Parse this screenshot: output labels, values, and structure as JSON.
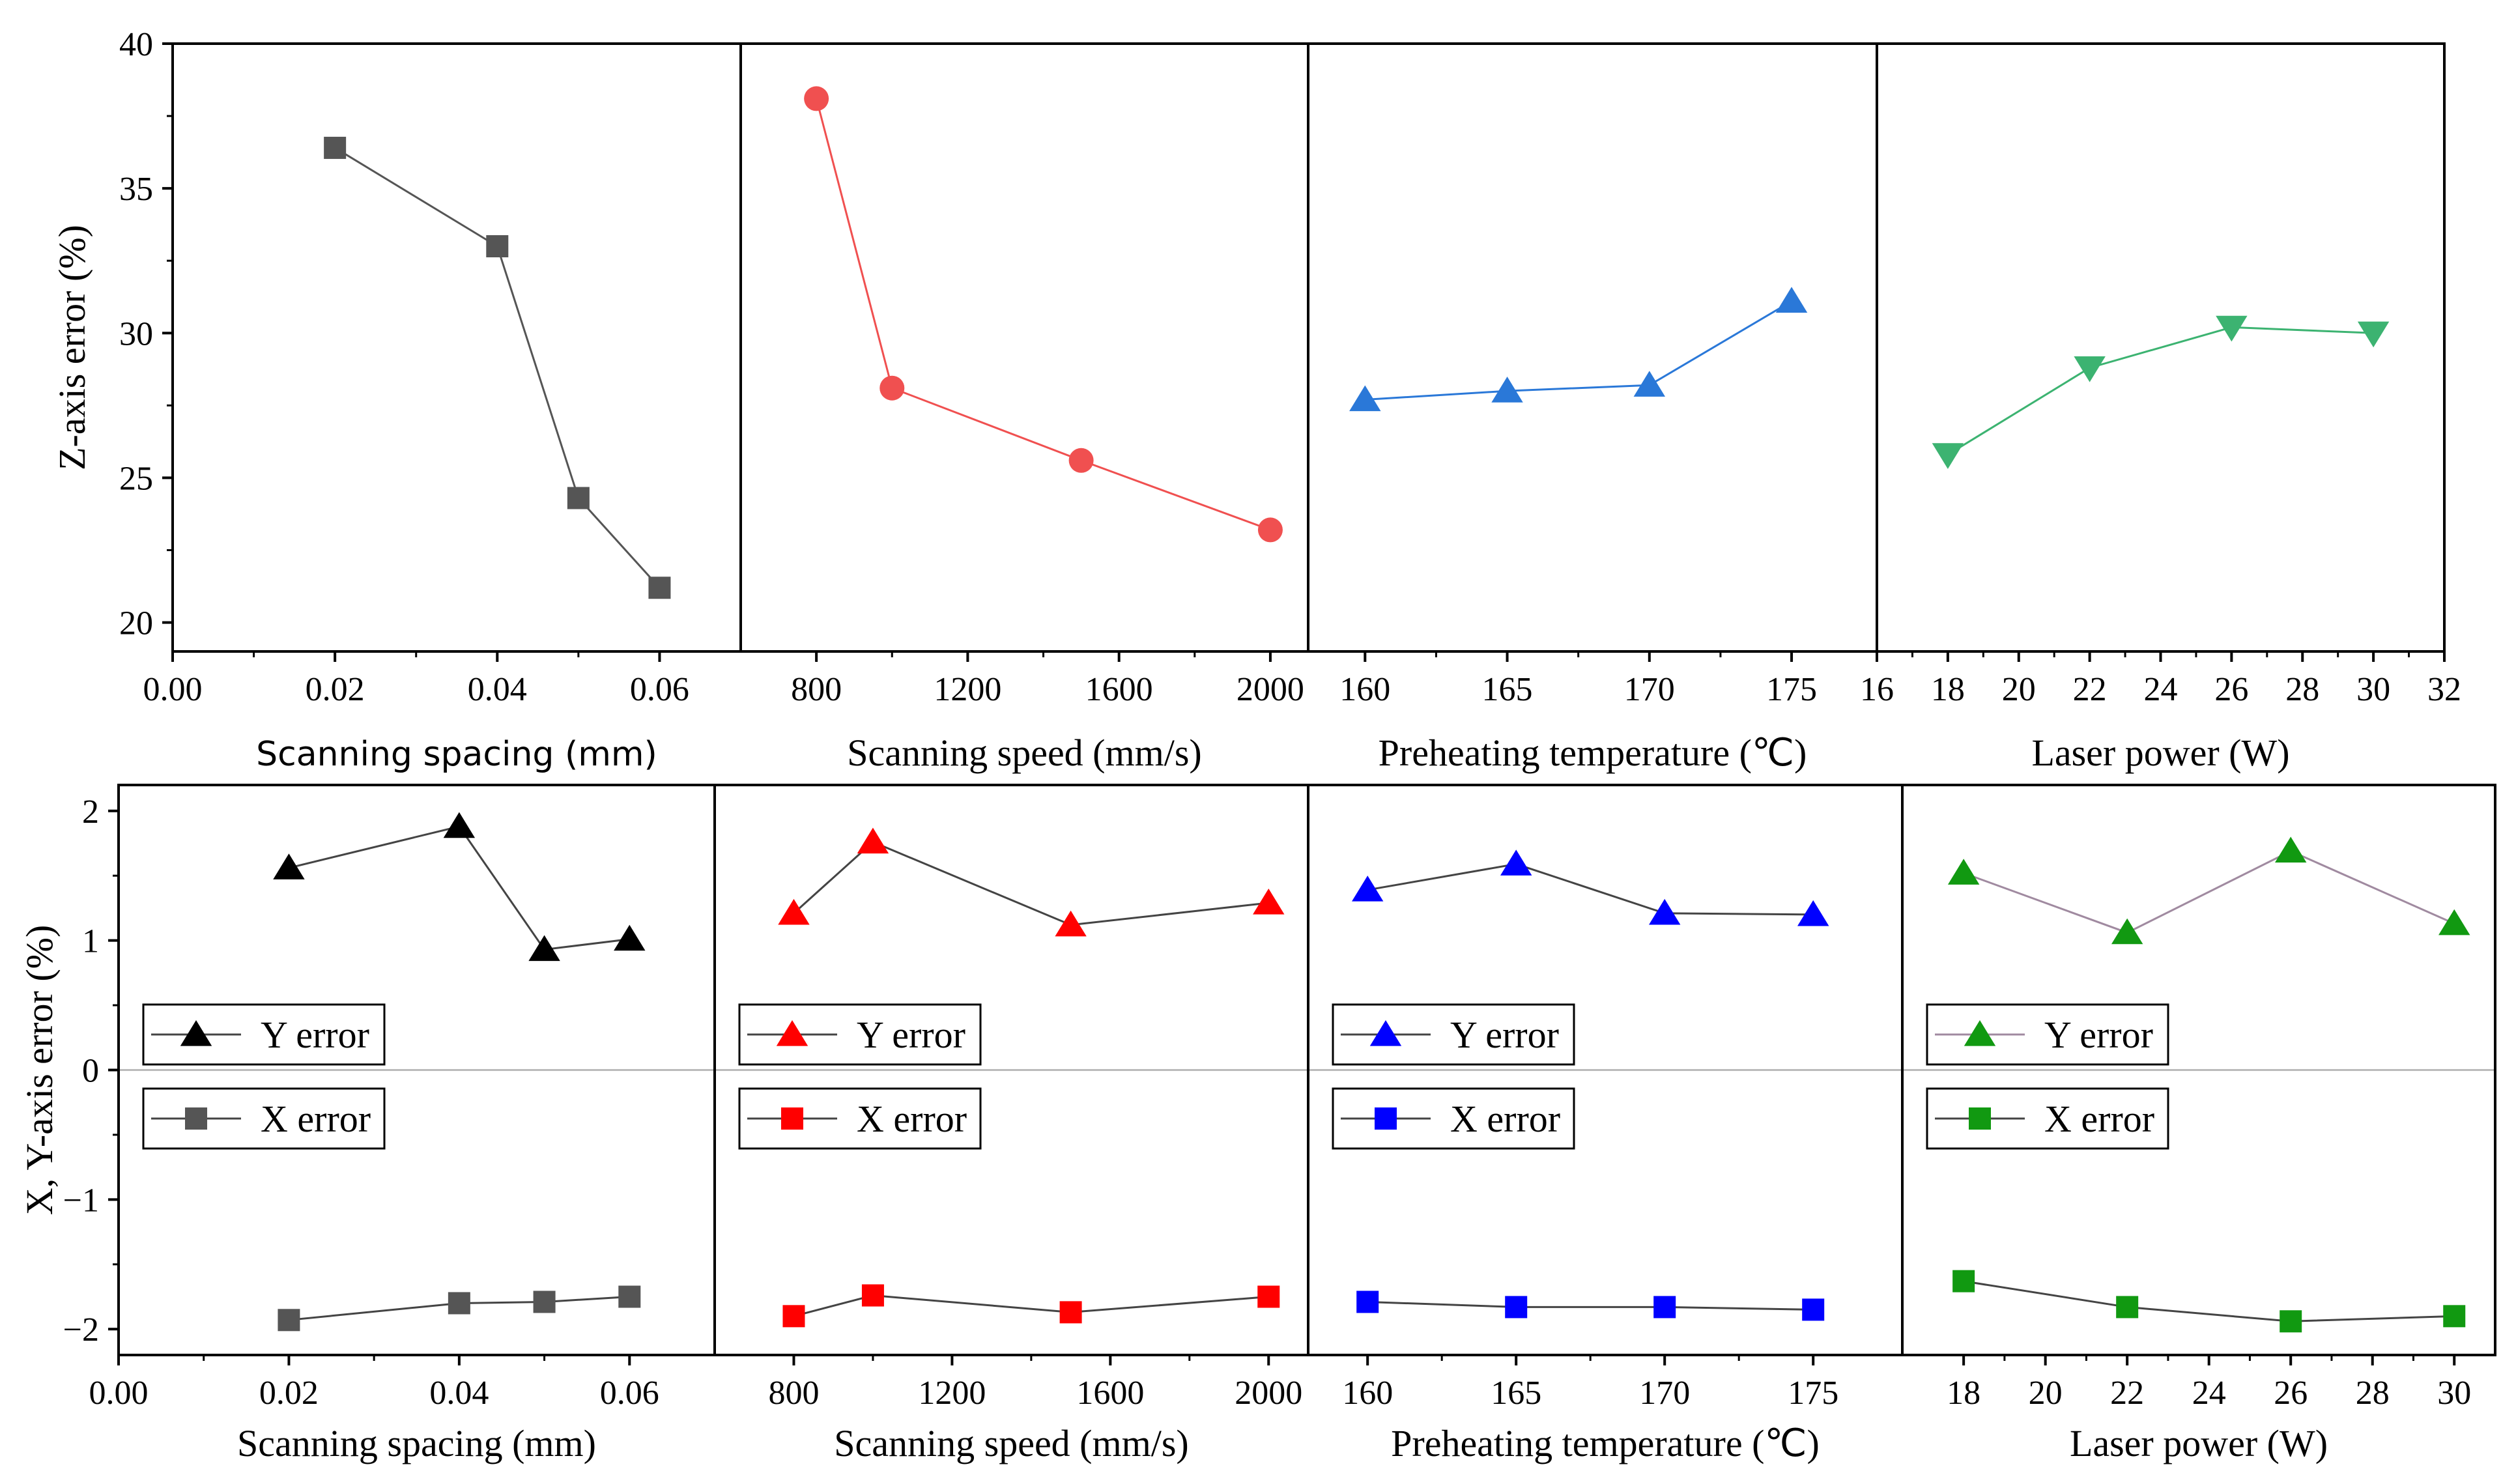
{
  "chart_data": [
    {
      "type": "line",
      "row": "top",
      "xlabel": "Scanning spacing (mm)",
      "ylabel": "Z-axis error (%)",
      "xlim": [
        0,
        0.07
      ],
      "ylim": [
        19,
        40
      ],
      "xticks": [
        0,
        0.02,
        0.04,
        0.06
      ],
      "xtick_labels": [
        "0.00",
        "0.02",
        "0.04",
        "0.06"
      ],
      "yticks": [
        20,
        25,
        30,
        35,
        40
      ],
      "ytick_labels": [
        "20",
        "25",
        "30",
        "35",
        "40"
      ],
      "series": [
        {
          "marker": "square",
          "color": "#555555",
          "line_color": "#555555",
          "x": [
            0.02,
            0.04,
            0.05,
            0.06
          ],
          "y": [
            36.4,
            33.0,
            24.3,
            21.2
          ]
        }
      ]
    },
    {
      "type": "line",
      "row": "top",
      "xlabel": "Scanning speed (mm/s)",
      "xlim": [
        600,
        2100
      ],
      "ylim": [
        19,
        40
      ],
      "xticks": [
        800,
        1200,
        1600,
        2000
      ],
      "xtick_labels": [
        "800",
        "1200",
        "1600",
        "2000"
      ],
      "series": [
        {
          "marker": "circle",
          "color": "#f05050",
          "line_color": "#f05050",
          "x": [
            800,
            1000,
            1500,
            2000
          ],
          "y": [
            38.1,
            28.1,
            25.6,
            23.2
          ]
        }
      ]
    },
    {
      "type": "line",
      "row": "top",
      "xlabel": "Preheating temperature (℃)",
      "xlim": [
        158,
        178
      ],
      "ylim": [
        19,
        40
      ],
      "xticks": [
        160,
        165,
        170,
        175
      ],
      "xtick_labels": [
        "160",
        "165",
        "170",
        "175"
      ],
      "series": [
        {
          "marker": "triangle",
          "color": "#2a78d8",
          "line_color": "#2a78d8",
          "x": [
            160,
            165,
            170,
            175
          ],
          "y": [
            27.7,
            28.0,
            28.2,
            31.1
          ]
        }
      ]
    },
    {
      "type": "line",
      "row": "top",
      "xlabel": "Laser power (W)",
      "xlim": [
        16,
        32
      ],
      "ylim": [
        19,
        40
      ],
      "xticks": [
        16,
        18,
        20,
        22,
        24,
        26,
        28,
        30,
        32
      ],
      "xtick_labels": [
        "16",
        "18",
        "20",
        "22",
        "24",
        "26",
        "28",
        "30",
        "32"
      ],
      "series": [
        {
          "marker": "triangle-down",
          "color": "#3cb371",
          "line_color": "#3cb371",
          "x": [
            18,
            22,
            26,
            30
          ],
          "y": [
            25.8,
            28.8,
            30.2,
            30.0
          ]
        }
      ]
    },
    {
      "type": "line",
      "row": "bottom",
      "xlabel": "Scanning spacing (mm)",
      "ylabel": "X, Y-axis error (%)",
      "xlim": [
        0,
        0.07
      ],
      "ylim": [
        -2.2,
        2.2
      ],
      "xticks": [
        0,
        0.02,
        0.04,
        0.06
      ],
      "xtick_labels": [
        "0.00",
        "0.02",
        "0.04",
        "0.06"
      ],
      "yticks": [
        -2,
        -1,
        0,
        1,
        2
      ],
      "ytick_labels": [
        "−2",
        "−1",
        "0",
        "1",
        "2"
      ],
      "zero_line": true,
      "series": [
        {
          "name": "Y error",
          "marker": "triangle",
          "color": "#000000",
          "line_color": "#444444",
          "x": [
            0.02,
            0.04,
            0.05,
            0.06
          ],
          "y": [
            1.56,
            1.88,
            0.93,
            1.01
          ]
        },
        {
          "name": "X error",
          "marker": "square",
          "color": "#555555",
          "line_color": "#444444",
          "x": [
            0.02,
            0.04,
            0.05,
            0.06
          ],
          "y": [
            -1.93,
            -1.8,
            -1.79,
            -1.75
          ]
        }
      ]
    },
    {
      "type": "line",
      "row": "bottom",
      "xlabel": "Scanning speed (mm/s)",
      "xlim": [
        600,
        2100
      ],
      "ylim": [
        -2.2,
        2.2
      ],
      "xticks": [
        800,
        1200,
        1600,
        2000
      ],
      "xtick_labels": [
        "800",
        "1200",
        "1600",
        "2000"
      ],
      "zero_line": true,
      "series": [
        {
          "name": "Y error",
          "marker": "triangle",
          "color": "#ff0000",
          "line_color": "#444444",
          "x": [
            800,
            1000,
            1500,
            2000
          ],
          "y": [
            1.21,
            1.76,
            1.12,
            1.29
          ]
        },
        {
          "name": "X error",
          "marker": "square",
          "color": "#ff0000",
          "line_color": "#444444",
          "x": [
            800,
            1000,
            1500,
            2000
          ],
          "y": [
            -1.9,
            -1.74,
            -1.87,
            -1.75
          ]
        }
      ]
    },
    {
      "type": "line",
      "row": "bottom",
      "xlabel": "Preheating temperature (℃)",
      "xlim": [
        158,
        178
      ],
      "ylim": [
        -2.2,
        2.2
      ],
      "xticks": [
        160,
        165,
        170,
        175
      ],
      "xtick_labels": [
        "160",
        "165",
        "170",
        "175"
      ],
      "zero_line": true,
      "series": [
        {
          "name": "Y error",
          "marker": "triangle",
          "color": "#0000ff",
          "line_color": "#444444",
          "x": [
            160,
            165,
            170,
            175
          ],
          "y": [
            1.39,
            1.59,
            1.21,
            1.2
          ]
        },
        {
          "name": "X error",
          "marker": "square",
          "color": "#0000ff",
          "line_color": "#444444",
          "x": [
            160,
            165,
            170,
            175
          ],
          "y": [
            -1.79,
            -1.83,
            -1.83,
            -1.85
          ]
        }
      ]
    },
    {
      "type": "line",
      "row": "bottom",
      "xlabel": "Laser power (W)",
      "xlim": [
        16.5,
        31
      ],
      "ylim": [
        -2.2,
        2.2
      ],
      "xticks": [
        18,
        20,
        22,
        24,
        26,
        28,
        30
      ],
      "xtick_labels": [
        "18",
        "20",
        "22",
        "24",
        "26",
        "28",
        "30"
      ],
      "zero_line": true,
      "series": [
        {
          "name": "Y error",
          "marker": "triangle",
          "color": "#119911",
          "line_color": "#a08aa0",
          "x": [
            18,
            22,
            26,
            30
          ],
          "y": [
            1.52,
            1.06,
            1.69,
            1.13
          ]
        },
        {
          "name": "X error",
          "marker": "square",
          "color": "#119911",
          "line_color": "#444444",
          "x": [
            18,
            22,
            26,
            30
          ],
          "y": [
            -1.63,
            -1.83,
            -1.94,
            -1.9
          ]
        }
      ]
    }
  ]
}
